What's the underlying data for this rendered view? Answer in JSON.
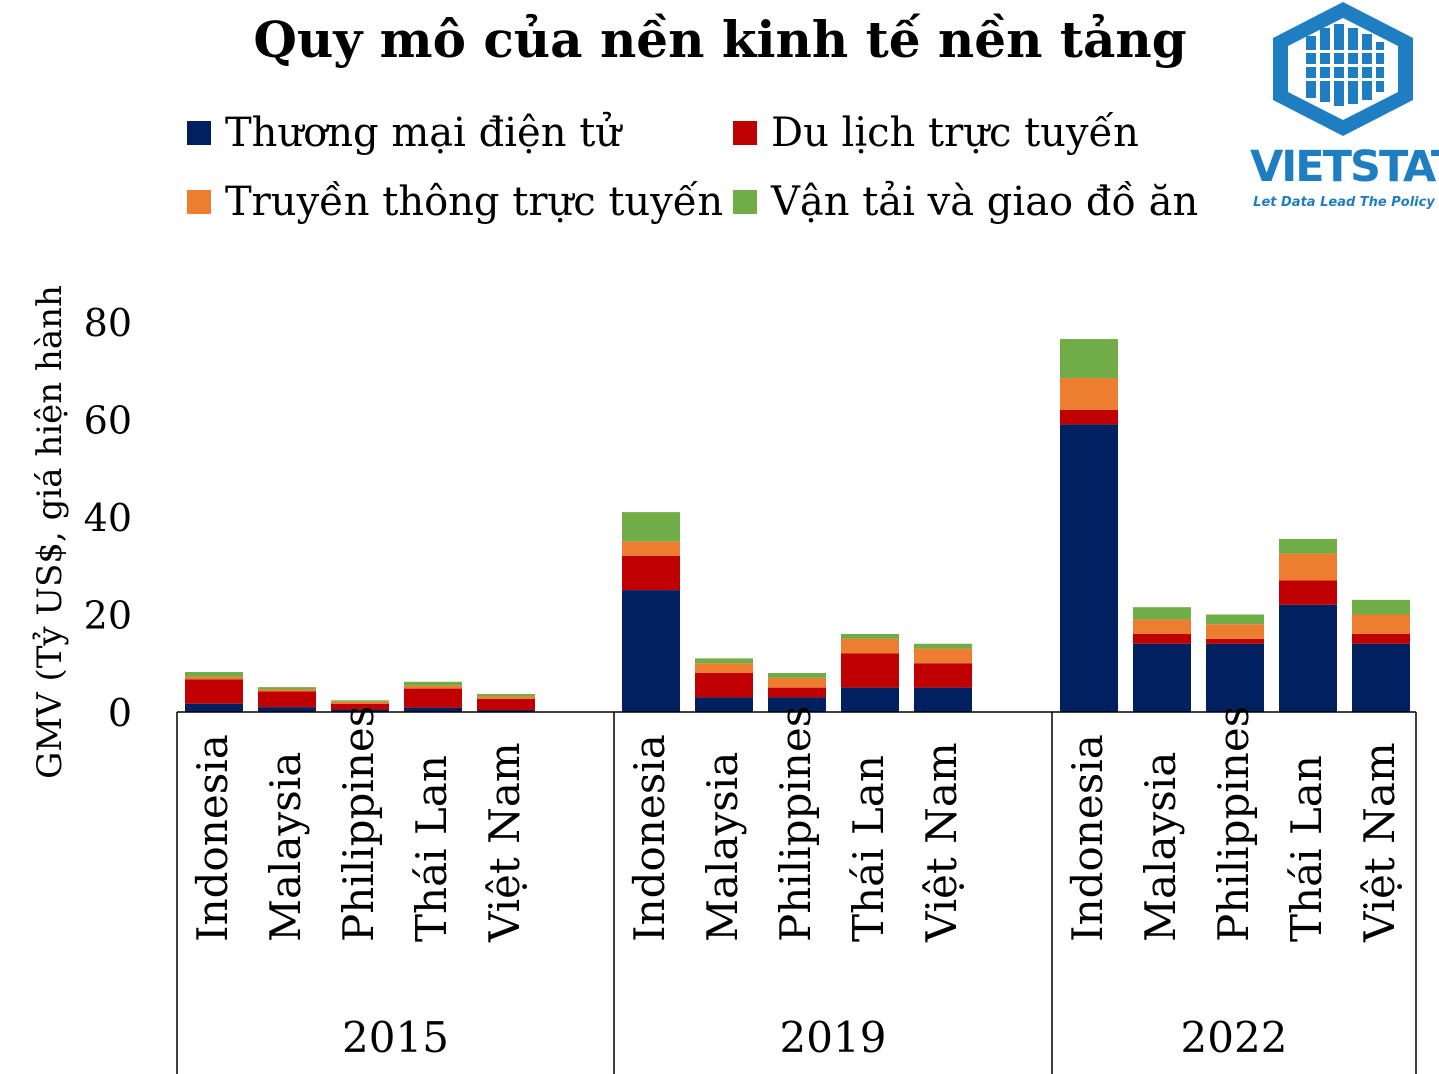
{
  "chart_data": {
    "type": "bar",
    "stacked": true,
    "title": "Quy mô của nền kinh tế nền tảng",
    "ylabel": "GMV (Tỷ US$, giá hiện hành",
    "xlabel": "",
    "ylim": [
      0,
      80
    ],
    "yticks": [
      0,
      20,
      40,
      60,
      80
    ],
    "grid": false,
    "legend_position": "top",
    "groups": [
      {
        "label": "2015",
        "categories": [
          "Indonesia",
          "Malaysia",
          "Philippines",
          "Thái Lan",
          "Việt Nam"
        ]
      },
      {
        "label": "2019",
        "categories": [
          "Indonesia",
          "Malaysia",
          "Philippines",
          "Thái Lan",
          "Việt Nam"
        ]
      },
      {
        "label": "2022",
        "categories": [
          "Indonesia",
          "Malaysia",
          "Philippines",
          "Thái Lan",
          "Việt Nam"
        ]
      }
    ],
    "series": [
      {
        "name": "Thương mại điện tử",
        "color": "#002060",
        "values": [
          1.7,
          1.0,
          0.5,
          0.9,
          0.4,
          25.0,
          3.0,
          3.0,
          5.0,
          5.0,
          59.0,
          14.0,
          14.0,
          22.0,
          14.0
        ]
      },
      {
        "name": "Du lịch trực tuyến",
        "color": "#c00000",
        "values": [
          5.0,
          3.2,
          1.2,
          3.9,
          2.3,
          7.0,
          5.0,
          2.0,
          7.0,
          5.0,
          3.0,
          2.0,
          1.0,
          5.0,
          2.0
        ]
      },
      {
        "name": "Truyền thông trực tuyến",
        "color": "#ed7d31",
        "values": [
          0.5,
          0.4,
          0.4,
          0.6,
          0.5,
          3.0,
          2.0,
          2.0,
          3.0,
          3.0,
          6.5,
          3.0,
          3.0,
          5.5,
          4.0
        ]
      },
      {
        "name": "Vận tải và giao đồ ăn",
        "color": "#70ad47",
        "values": [
          1.0,
          0.5,
          0.3,
          0.8,
          0.5,
          6.0,
          1.0,
          1.0,
          1.0,
          1.0,
          8.0,
          2.5,
          2.0,
          3.0,
          3.0
        ]
      }
    ]
  },
  "logo": {
    "name": "VIETSTATS",
    "tagline": "Let Data Lead The Policy",
    "color": "#1f7ec2"
  }
}
